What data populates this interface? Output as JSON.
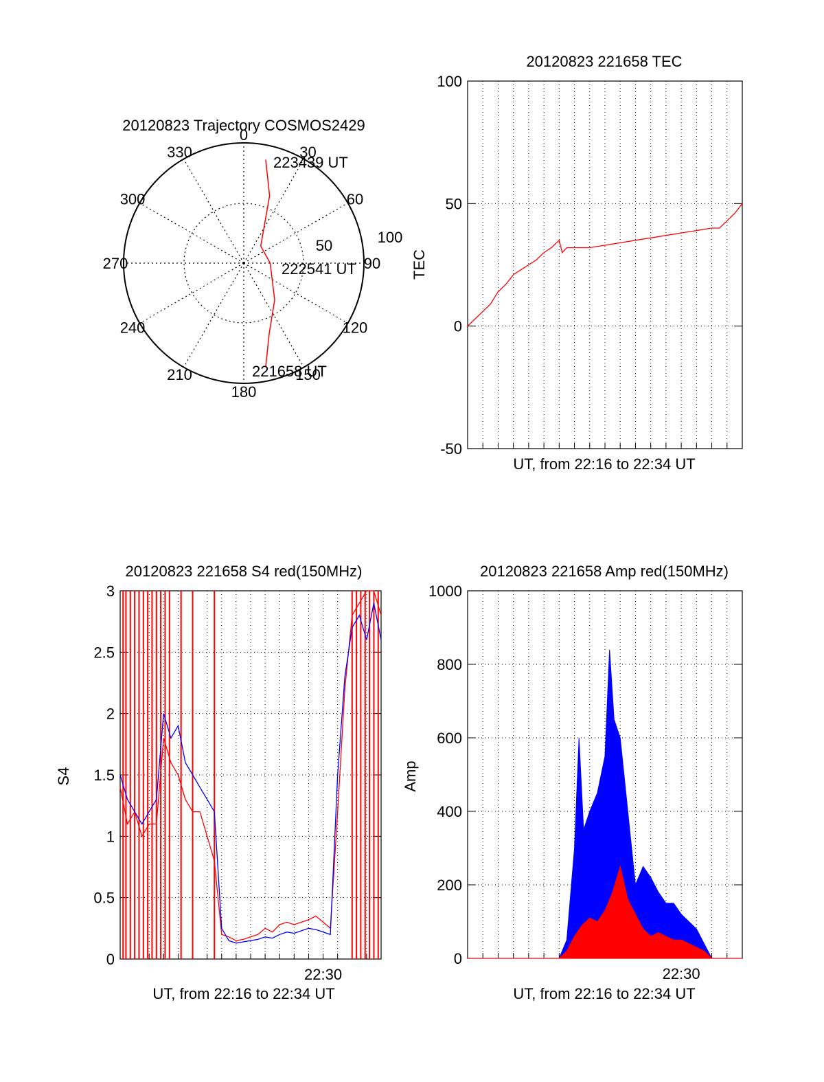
{
  "chart_data": [
    {
      "id": "trajectory",
      "type": "polar",
      "title": "20120823 Trajectory COSMOS2429",
      "angle_labels": [
        "0",
        "30",
        "60",
        "90",
        "120",
        "150",
        "180",
        "210",
        "240",
        "270",
        "300",
        "330"
      ],
      "radial_labels": [
        "50",
        "100"
      ],
      "series": [
        {
          "color": "#ff0000",
          "points": [
            [
              12,
              88
            ],
            [
              21,
              60
            ],
            [
              45,
              20
            ],
            [
              90,
              22
            ],
            [
              140,
              40
            ],
            [
              160,
              62
            ],
            [
              168,
              88
            ]
          ]
        }
      ],
      "annotations": [
        {
          "text": "223439 UT",
          "az": 12,
          "el": 88
        },
        {
          "text": "222541 UT",
          "az": 90,
          "el": 22
        },
        {
          "text": "221658 UT",
          "az": 168,
          "el": 88
        }
      ]
    },
    {
      "id": "tec",
      "type": "line",
      "title": "20120823 221658 TEC",
      "xlabel": "UT, from 22:16 to 22:34 UT",
      "ylabel": "TEC",
      "xlim": [
        0,
        18
      ],
      "ylim": [
        -50,
        100
      ],
      "yticks": [
        "-50",
        "0",
        "50",
        "100"
      ],
      "series": [
        {
          "color": "#ff0000",
          "x": [
            0,
            0.5,
            1,
            1.5,
            2,
            2.5,
            3,
            3.5,
            4,
            4.5,
            5,
            5.5,
            6,
            6.2,
            6.5,
            7,
            8,
            9,
            10,
            11,
            12,
            13,
            14,
            15,
            16,
            16.5,
            17,
            17.5,
            18
          ],
          "y": [
            0,
            3,
            6,
            9,
            14,
            17,
            21,
            23,
            25,
            27,
            30,
            32,
            35,
            30,
            32,
            32,
            32,
            33,
            34,
            35,
            36,
            37,
            38,
            39,
            40,
            40,
            43,
            46,
            50
          ]
        }
      ]
    },
    {
      "id": "s4",
      "type": "line",
      "title": "20120823 221658 S4 red(150MHz)",
      "xlabel": "UT, from 22:16 to 22:34 UT",
      "ylabel": "S4",
      "xlim": [
        0,
        18
      ],
      "ylim": [
        0,
        3
      ],
      "yticks": [
        "0",
        "0.5",
        "1",
        "1.5",
        "2",
        "2.5",
        "3"
      ],
      "xticks": [
        {
          "x": 14,
          "label": "22:30"
        }
      ],
      "series": [
        {
          "color": "#ff0000",
          "x": [
            0,
            0.5,
            1,
            1.5,
            2,
            2.5,
            3,
            3.5,
            4,
            4.5,
            5,
            5.5,
            6,
            6.5,
            7,
            7.5,
            8,
            8.5,
            9,
            9.5,
            10,
            10.5,
            11,
            11.5,
            12,
            12.5,
            13,
            13.5,
            14,
            14.5,
            15,
            15.5,
            16,
            16.5,
            17,
            17.5,
            18
          ],
          "y": [
            1.4,
            1.1,
            1.2,
            1.0,
            1.1,
            1.1,
            1.8,
            1.6,
            1.5,
            1.3,
            1.2,
            1.2,
            1.0,
            0.8,
            0.2,
            0.18,
            0.15,
            0.16,
            0.18,
            0.2,
            0.25,
            0.22,
            0.28,
            0.3,
            0.28,
            0.3,
            0.32,
            0.35,
            0.3,
            0.25,
            1.2,
            2.2,
            2.8,
            2.9,
            3.0,
            3.0,
            2.8
          ]
        },
        {
          "color": "#0000ff",
          "x": [
            0,
            0.5,
            1,
            1.5,
            2,
            2.5,
            3,
            3.5,
            4,
            4.5,
            5,
            5.5,
            6,
            6.5,
            7,
            7.5,
            8,
            8.5,
            9,
            9.5,
            10,
            10.5,
            11,
            11.5,
            12,
            12.5,
            13,
            13.5,
            14,
            14.5,
            15,
            15.5,
            16,
            16.5,
            17,
            17.5,
            18
          ],
          "y": [
            1.5,
            1.3,
            1.2,
            1.1,
            1.2,
            1.3,
            2.0,
            1.8,
            1.9,
            1.6,
            1.5,
            1.4,
            1.3,
            1.2,
            0.25,
            0.15,
            0.13,
            0.14,
            0.15,
            0.16,
            0.18,
            0.17,
            0.2,
            0.22,
            0.21,
            0.23,
            0.25,
            0.24,
            0.22,
            0.2,
            1.5,
            2.3,
            2.7,
            2.8,
            2.6,
            2.9,
            2.6
          ]
        }
      ],
      "spikes_red_x": [
        0.2,
        0.4,
        0.7,
        1.0,
        1.3,
        1.6,
        1.9,
        2.2,
        2.5,
        2.8,
        3.1,
        3.4,
        4.2,
        5.0,
        6.5,
        16.0,
        16.3,
        16.6,
        16.9,
        17.2,
        17.5,
        17.8
      ]
    },
    {
      "id": "amp",
      "type": "line",
      "title": "20120823 221658 Amp red(150MHz)",
      "xlabel": "UT, from 22:16 to 22:34 UT",
      "ylabel": "Amp",
      "xlim": [
        0,
        18
      ],
      "ylim": [
        0,
        1000
      ],
      "yticks": [
        "0",
        "200",
        "400",
        "600",
        "800",
        "1000"
      ],
      "xticks": [
        {
          "x": 14,
          "label": "22:30"
        }
      ],
      "series": [
        {
          "color": "#0000ff",
          "x": [
            0,
            3,
            5,
            6,
            6.5,
            7,
            7.3,
            7.6,
            8,
            8.5,
            9,
            9.3,
            9.6,
            10,
            10.5,
            11,
            11.5,
            12,
            12.5,
            13,
            13.5,
            14,
            14.5,
            15,
            15.5,
            16,
            18
          ],
          "y": [
            0,
            0,
            0,
            0,
            50,
            300,
            600,
            350,
            400,
            450,
            550,
            840,
            650,
            600,
            400,
            200,
            250,
            220,
            180,
            150,
            150,
            120,
            100,
            80,
            40,
            0,
            0
          ]
        },
        {
          "color": "#ff0000",
          "x": [
            0,
            3,
            5,
            6,
            6.5,
            7,
            7.5,
            8,
            8.5,
            9,
            9.5,
            10,
            10.5,
            11,
            11.5,
            12,
            12.5,
            13,
            13.5,
            14,
            14.5,
            15,
            15.5,
            16,
            18
          ],
          "y": [
            0,
            0,
            0,
            0,
            20,
            60,
            90,
            110,
            100,
            130,
            180,
            250,
            160,
            120,
            80,
            60,
            70,
            60,
            50,
            50,
            40,
            30,
            20,
            0,
            0
          ]
        }
      ]
    }
  ],
  "colors": {
    "red": "#ff0000",
    "blue": "#0000ff",
    "axis": "#000000",
    "grid": "#000000"
  }
}
